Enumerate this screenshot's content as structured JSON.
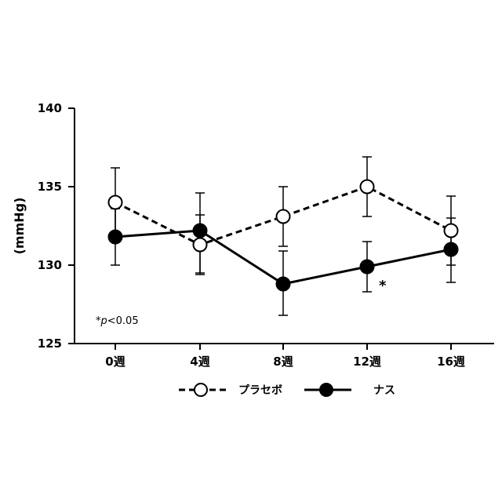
{
  "chart_data": {
    "type": "line",
    "title": "",
    "xlabel": "",
    "ylabel": "(mmHg)",
    "ylim": [
      125,
      140
    ],
    "yticks": [
      "125",
      "130",
      "135",
      "140"
    ],
    "categories": [
      "0週",
      "4週",
      "8週",
      "12週",
      "16週"
    ],
    "series": [
      {
        "name": "プラセボ",
        "style": "dashed",
        "marker": "open-circle",
        "values": [
          134.0,
          131.3,
          133.1,
          135.0,
          132.2
        ],
        "err_upper": [
          136.2,
          133.2,
          135.0,
          136.9,
          134.4
        ],
        "err_lower": [
          131.8,
          129.4,
          131.2,
          133.1,
          130.0
        ]
      },
      {
        "name": "ナス",
        "style": "solid",
        "marker": "filled-circle",
        "values": [
          131.8,
          132.2,
          128.8,
          129.9,
          131.0
        ],
        "err_upper": [
          133.6,
          134.6,
          130.9,
          131.5,
          133.0
        ],
        "err_lower": [
          130.0,
          129.5,
          126.8,
          128.3,
          128.9
        ]
      }
    ],
    "annotations": {
      "significance_marker": "*",
      "significance_at": "12週",
      "note_star": "*",
      "note_p": "p",
      "note_value": "<0.05"
    },
    "legend_position": "bottom",
    "grid": false
  }
}
